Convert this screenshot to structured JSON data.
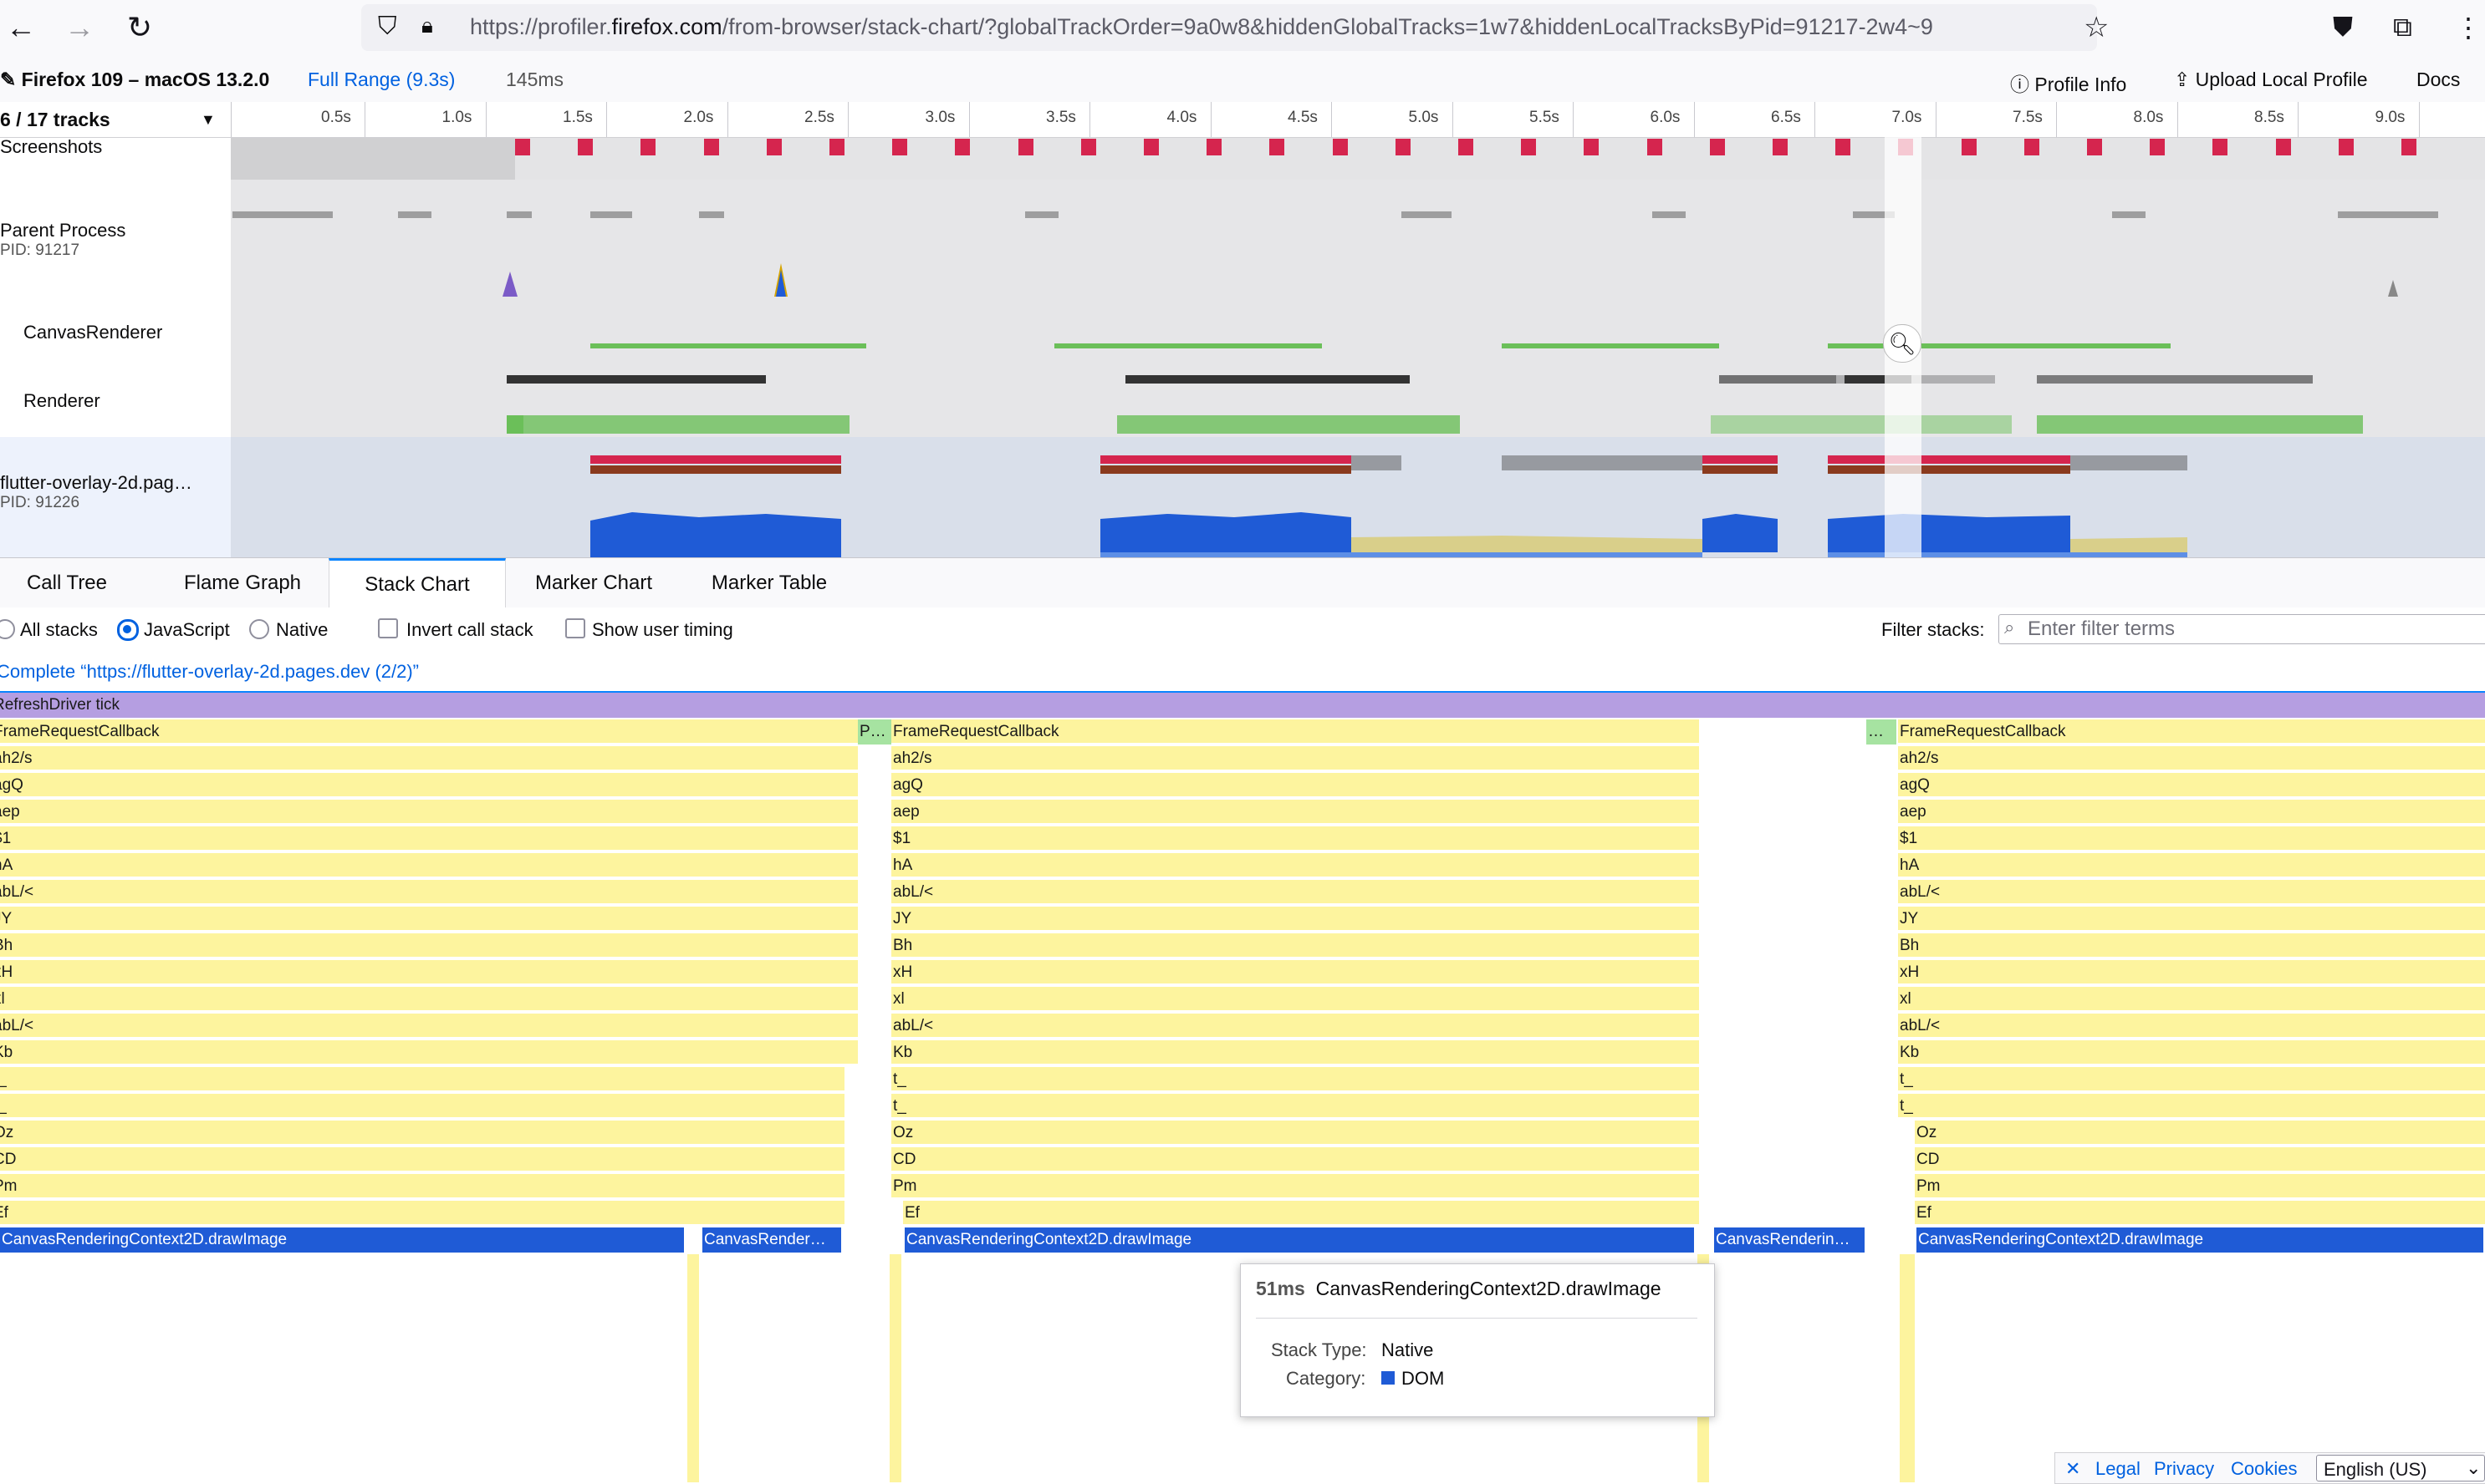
{
  "browser": {
    "back_glyph": "←",
    "forward_glyph": "→",
    "reload_glyph": "↻",
    "shield_glyph": "⛉",
    "lock_glyph": "🔒︎",
    "url_prefix": "https://profiler.",
    "url_domain": "firefox.com",
    "url_rest": "/from-browser/stack-chart/?globalTrackOrder=9a0w8&hiddenGlobalTracks=1w7&hiddenLocalTracksByPid=91217-2w4~9",
    "star_glyph": "☆",
    "pocket_glyph": "⛊",
    "extensions_glyph": "⧉",
    "menu_glyph": "⋮"
  },
  "profiler_bar": {
    "product": "Firefox 109 – macOS 13.2.0",
    "range": "Full Range (9.3s)",
    "uncommitted_range": "145ms",
    "profile_info": "Profile Info",
    "upload": "Upload Local Profile",
    "docs": "Docs"
  },
  "timeline": {
    "track_count": "6 / 17 tracks",
    "ticks": [
      "0.5s",
      "1.0s",
      "1.5s",
      "2.0s",
      "2.5s",
      "3.0s",
      "3.5s",
      "4.0s",
      "4.5s",
      "5.0s",
      "5.5s",
      "6.0s",
      "6.5s",
      "7.0s",
      "7.5s",
      "8.0s",
      "8.5s",
      "9.0s"
    ],
    "tracks": [
      {
        "name": "Screenshots",
        "pid": ""
      },
      {
        "name": "Parent Process",
        "pid": "PID: 91217"
      },
      {
        "name": "CanvasRenderer",
        "pid": ""
      },
      {
        "name": "Renderer",
        "pid": ""
      },
      {
        "name": "flutter-overlay-2d.pag…",
        "pid": "PID: 91226"
      }
    ]
  },
  "tabs": [
    "Call Tree",
    "Flame Graph",
    "Stack Chart",
    "Marker Chart",
    "Marker Table"
  ],
  "selected_tab": "Stack Chart",
  "settings": {
    "all_stacks": "All stacks",
    "javascript": "JavaScript",
    "native": "Native",
    "invert": "Invert call stack",
    "user_timing": "Show user timing",
    "filter_label": "Filter stacks:",
    "filter_placeholder": "Enter filter terms"
  },
  "breadcrumb": "Complete “https://flutter-overlay-2d.pages.dev (2/2)”",
  "stack": {
    "root": "RefreshDriver tick",
    "left_col": [
      "FrameRequestCallback",
      "ah2/s",
      "agQ",
      "aep",
      "$1",
      "hA",
      "abL/<",
      "JY",
      "Bh",
      "xH",
      "xl",
      "abL/<",
      "Kb",
      "t_",
      "t_",
      "Oz",
      "CD",
      "Pm",
      "Ef"
    ],
    "mid_col": [
      "FrameRequestCallback",
      "ah2/s",
      "agQ",
      "aep",
      "$1",
      "hA",
      "abL/<",
      "JY",
      "Bh",
      "xH",
      "xl",
      "abL/<",
      "Kb",
      "t_",
      "t_",
      "Oz",
      "CD",
      "Pm",
      "Ef"
    ],
    "right_col": [
      "FrameRequestCallback",
      "ah2/s",
      "agQ",
      "aep",
      "$1",
      "hA",
      "abL/<",
      "JY",
      "Bh",
      "xH",
      "xl",
      "abL/<",
      "Kb",
      "t_",
      "t_",
      "Oz",
      "CD",
      "Pm",
      "Ef"
    ],
    "green_a": "P…",
    "green_b": "…",
    "draw_image": "CanvasRenderingContext2D.drawImage",
    "canvas_render_a": "CanvasRender…",
    "canvas_render_b": "CanvasRenderin…"
  },
  "tooltip": {
    "duration": "51ms",
    "title": "CanvasRenderingContext2D.drawImage",
    "stack_type_label": "Stack Type:",
    "stack_type_value": "Native",
    "category_label": "Category:",
    "category_value": "DOM",
    "category_color": "#1f5bd6"
  },
  "footer": {
    "close_glyph": "✕",
    "legal": "Legal",
    "privacy": "Privacy",
    "cookies": "Cookies",
    "language": "English (US)"
  }
}
